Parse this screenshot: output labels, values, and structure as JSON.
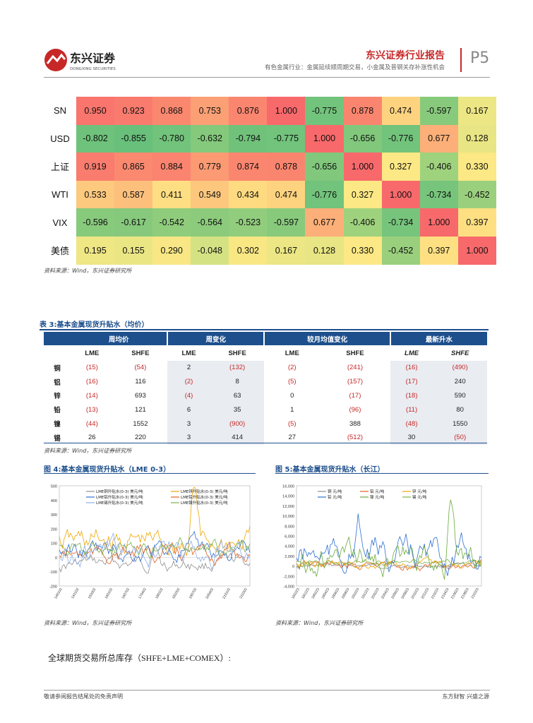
{
  "header": {
    "logo_cn": "东兴证券",
    "logo_en": "DONGXING SECURITIES",
    "report_title": "东兴证券行业报告",
    "subtitle": "有色金属行业：金属延续顺周期交易，小金属及普钢关存补涨性机会",
    "page": "P5"
  },
  "heatmap": {
    "rows": [
      {
        "label": "SN",
        "values": [
          "0.950",
          "0.923",
          "0.868",
          "0.753",
          "0.876",
          "1.000",
          "-0.775",
          "0.878",
          "0.474",
          "-0.597",
          "0.167"
        ]
      },
      {
        "label": "USD",
        "values": [
          "-0.802",
          "-0.855",
          "-0.780",
          "-0.632",
          "-0.794",
          "-0.775",
          "1.000",
          "-0.656",
          "-0.776",
          "0.677",
          "0.128"
        ]
      },
      {
        "label": "上证",
        "values": [
          "0.919",
          "0.865",
          "0.884",
          "0.779",
          "0.874",
          "0.878",
          "-0.656",
          "1.000",
          "0.327",
          "-0.406",
          "0.330"
        ]
      },
      {
        "label": "WTI",
        "values": [
          "0.533",
          "0.587",
          "0.411",
          "0.549",
          "0.434",
          "0.474",
          "-0.776",
          "0.327",
          "1.000",
          "-0.734",
          "-0.452"
        ]
      },
      {
        "label": "VIX",
        "values": [
          "-0.596",
          "-0.617",
          "-0.542",
          "-0.564",
          "-0.523",
          "-0.597",
          "0.677",
          "-0.406",
          "-0.734",
          "1.000",
          "0.397"
        ]
      },
      {
        "label": "美债",
        "values": [
          "0.195",
          "0.155",
          "0.290",
          "-0.048",
          "0.302",
          "0.167",
          "0.128",
          "0.330",
          "-0.452",
          "0.397",
          "1.000"
        ]
      }
    ],
    "source": "资料来源：Wind，东兴证券研究所"
  },
  "table3": {
    "title": "表 3:基本金属现货升贴水（均价）",
    "groups": [
      "周均价",
      "周变化",
      "较月均值变化",
      "最新升水"
    ],
    "subheads": [
      "LME",
      "SHFE",
      "LME",
      "SHFE",
      "LME",
      "SHFE",
      "LME",
      "SHFE"
    ],
    "rows": [
      {
        "metal": "铜",
        "cells": [
          "(15)",
          "(54)",
          "2",
          "(132)",
          "(2)",
          "(241)",
          "(16)",
          "(490)"
        ]
      },
      {
        "metal": "铝",
        "cells": [
          "(16)",
          "116",
          "(2)",
          "8",
          "(5)",
          "(157)",
          "(17)",
          "240"
        ]
      },
      {
        "metal": "锌",
        "cells": [
          "(14)",
          "693",
          "(4)",
          "63",
          "0",
          "(17)",
          "(18)",
          "590"
        ]
      },
      {
        "metal": "铅",
        "cells": [
          "(13)",
          "121",
          "6",
          "35",
          "1",
          "(96)",
          "(11)",
          "80"
        ]
      },
      {
        "metal": "镍",
        "cells": [
          "(44)",
          "1552",
          "3",
          "(900)",
          "(5)",
          "388",
          "(48)",
          "1550"
        ]
      },
      {
        "metal": "锡",
        "cells": [
          "26",
          "220",
          "3",
          "414",
          "27",
          "(512)",
          "30",
          "(50)"
        ]
      }
    ],
    "source": "资料来源：Wind，东兴证券研究所"
  },
  "fig4": {
    "title": "图 4:基本金属现货升贴水（LME 0-3）",
    "legend": [
      "LME铜升贴水(0-3) 美元/吨",
      "LME锌升贴水(0-3) 美元/吨",
      "LME铝升贴水(0-3) 美元/吨",
      "LME铅升贴水(0-3) 美元/吨",
      "LME锡升贴水(0-3) 美元/吨",
      "LME镍升贴水(0-3) 美元/吨"
    ],
    "yticks": [
      "500",
      "400",
      "300",
      "200",
      "100",
      "0",
      "-100",
      "-200"
    ],
    "xticks": [
      "140102",
      "141102",
      "150302",
      "160102",
      "160702",
      "170402",
      "180102",
      "181002",
      "190702",
      "200402",
      "210102",
      "211002"
    ],
    "source": "资料来源：Wind，东兴证券研究所"
  },
  "fig5": {
    "title": "图 5:基本金属现货升贴水（长江）",
    "legend": [
      "铜 元/吨",
      "铝 元/吨",
      "锌 元/吨",
      "铅 元/吨",
      "镍 元/吨",
      "锡 元/吨"
    ],
    "yticks": [
      "16,000",
      "14,000",
      "12,000",
      "10,000",
      "8,000",
      "6,000",
      "4,000",
      "2,000",
      "0",
      "-2,000",
      "-4,000"
    ],
    "xticks": [
      "181023",
      "181223",
      "190223",
      "190423",
      "190623",
      "190823",
      "191023",
      "191223",
      "200223",
      "200423",
      "200623",
      "200823",
      "201023",
      "201223",
      "210223",
      "210423",
      "210623",
      "210823",
      "211023"
    ],
    "source": "资料来源：Wind，东兴证券研究所"
  },
  "body_text": "全球期货交易所总库存（SHFE+LME+COMEX）:",
  "footer": {
    "left": "敬请参阅报告结尾处的免责声明",
    "right": "东方财智 兴盛之源"
  }
}
